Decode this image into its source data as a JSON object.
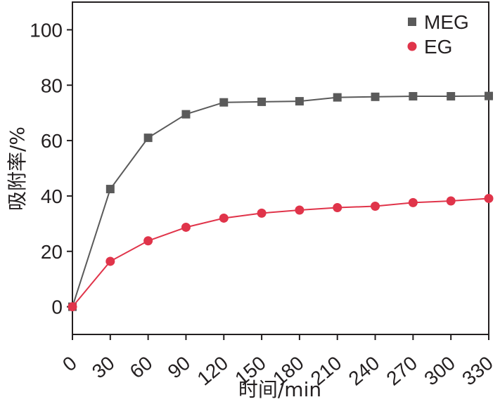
{
  "chart_data": {
    "type": "line",
    "title": "",
    "xlabel": "时间/min",
    "ylabel": "吸附率/%",
    "x": [
      0,
      30,
      60,
      90,
      120,
      150,
      180,
      210,
      240,
      270,
      300,
      330
    ],
    "x_tick_labels": [
      "0",
      "30",
      "60",
      "90",
      "120",
      "150",
      "180",
      "210",
      "240",
      "270",
      "300",
      "330"
    ],
    "y_ticks": [
      0,
      20,
      40,
      60,
      80,
      100
    ],
    "y_tick_labels": [
      "0",
      "20",
      "40",
      "60",
      "80",
      "100"
    ],
    "xlim": [
      0,
      330
    ],
    "ylim": [
      -10,
      110
    ],
    "grid": false,
    "legend_position": "top-right",
    "series": [
      {
        "name": "MEG",
        "marker": "square",
        "line_color": "#5a5a5a",
        "marker_color": "#5a5a5a",
        "values": [
          0,
          42.5,
          61,
          69.5,
          73.8,
          74,
          74.2,
          75.6,
          75.8,
          76,
          76,
          76.1
        ]
      },
      {
        "name": "EG",
        "marker": "circle",
        "line_color": "#e0344a",
        "marker_color": "#e0344a",
        "values": [
          0,
          16.4,
          23.8,
          28.7,
          32,
          33.8,
          34.9,
          35.8,
          36.3,
          37.6,
          38.2,
          39.1
        ]
      }
    ]
  }
}
